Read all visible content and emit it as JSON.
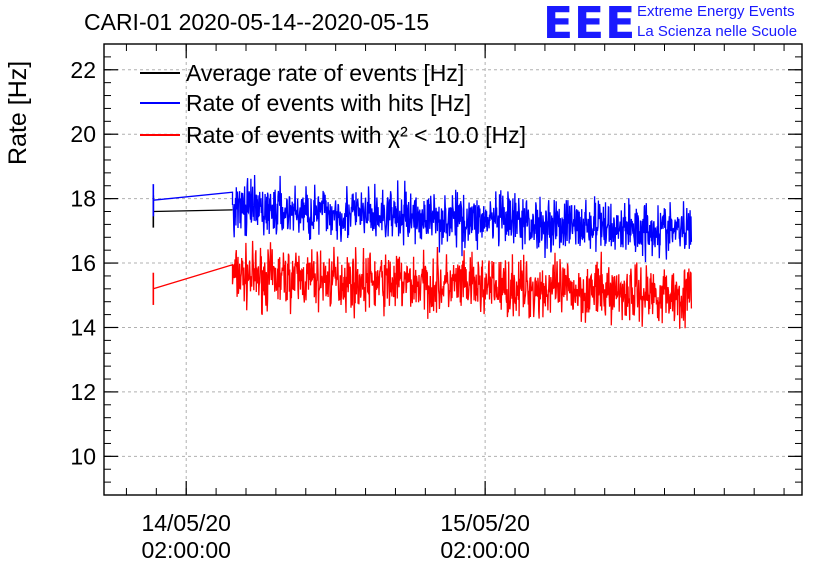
{
  "header": {
    "title": "CARI-01 2020-05-14--2020-05-15",
    "logo_text": "EEE",
    "org_line1": "Extreme Energy Events",
    "org_line2": "La Scienza nelle Scuole"
  },
  "chart_data": {
    "type": "line",
    "title": "CARI-01 2020-05-14--2020-05-15",
    "xlabel": "",
    "ylabel": "Rate [Hz]",
    "x_unit": "hours since 14/05/20 00:00:00",
    "xlim": [
      -3.5,
      43.2
    ],
    "ylim": [
      8.8,
      22.8
    ],
    "y_ticks": [
      10,
      12,
      14,
      16,
      18,
      20,
      22
    ],
    "x_ticks": [
      {
        "x": 2,
        "label_line1": "14/05/20",
        "label_line2": "02:00:00"
      },
      {
        "x": 22,
        "label_line1": "15/05/20",
        "label_line2": "02:00:00"
      }
    ],
    "grid": true,
    "legend_position": "top-left",
    "colors": {
      "average": "#000000",
      "hits": "#0000ff",
      "chi2": "#ff0000"
    },
    "series": [
      {
        "name": "Average rate of events [Hz]",
        "key": "average",
        "x": [
          -0.2,
          5.1
        ],
        "values": [
          17.6,
          17.65
        ],
        "x_start": -0.2,
        "x_end": 5.1
      },
      {
        "name": "Rate of events with hits [Hz]",
        "key": "hits",
        "x": [
          -0.2,
          5.1
        ],
        "values": [
          17.95,
          18.2
        ],
        "noisy_from": 5.1,
        "noisy_to": 35.8,
        "mean_start": 17.7,
        "mean_end": 17.0,
        "noise_amplitude": 0.55
      },
      {
        "name": "Rate of events with χ² < 10.0 [Hz]",
        "key": "chi2",
        "x": [
          -0.2,
          5.1
        ],
        "values": [
          15.2,
          15.95
        ],
        "noisy_from": 5.1,
        "noisy_to": 35.8,
        "mean_start": 15.6,
        "mean_end": 15.0,
        "noise_amplitude": 0.6
      }
    ]
  }
}
